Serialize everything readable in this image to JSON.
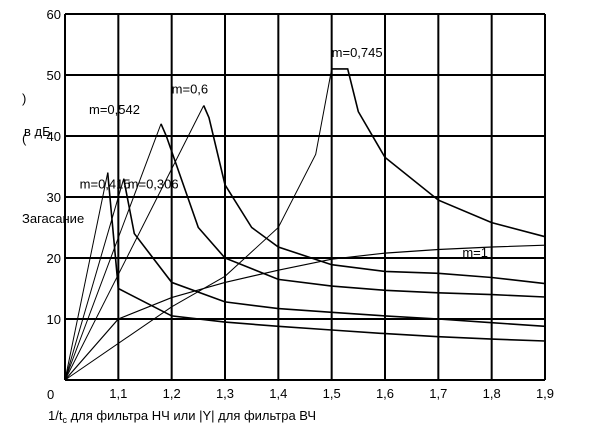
{
  "chart_data": {
    "type": "line",
    "x_ticks": [
      "1,1",
      "1,2",
      "1,3",
      "1,4",
      "1,5",
      "1,6",
      "1,7",
      "1,8",
      "1,9"
    ],
    "y_ticks": [
      "10",
      "20",
      "30",
      "40",
      "50",
      "60"
    ],
    "origin_label": "0",
    "xlim": [
      1.0,
      1.9
    ],
    "ylim": [
      0,
      60
    ],
    "grid": true,
    "xlabel_parts": [
      "1/t",
      "c",
      " для фильтра НЧ или   |Y| для фильтра ВЧ"
    ],
    "ylabel_fragments": [
      ")",
      "в дБ",
      "("
    ],
    "side_label": "Загасание",
    "grid_color": "#000000",
    "curve_color": "#000000",
    "series": [
      {
        "name": "m=0,306",
        "x": [
          1.0,
          1.08,
          1.1,
          1.2,
          1.3,
          1.4,
          1.5,
          1.6,
          1.7,
          1.8,
          1.9
        ],
        "y": [
          0,
          34,
          15,
          10.5,
          9.5,
          8.8,
          8.2,
          7.6,
          7.1,
          6.7,
          6.4
        ]
      },
      {
        "name": "m=0,415",
        "x": [
          1.0,
          1.11,
          1.13,
          1.2,
          1.3,
          1.4,
          1.5,
          1.6,
          1.7,
          1.8,
          1.9
        ],
        "y": [
          0,
          33,
          24,
          16,
          12.8,
          11.7,
          11.1,
          10.5,
          10.0,
          9.4,
          8.8
        ]
      },
      {
        "name": "m=0,542",
        "x": [
          1.0,
          1.18,
          1.19,
          1.25,
          1.3,
          1.4,
          1.5,
          1.6,
          1.7,
          1.8,
          1.9
        ],
        "y": [
          0,
          42,
          40,
          25,
          20,
          16.5,
          15.4,
          14.7,
          14.3,
          14.0,
          13.6
        ]
      },
      {
        "name": "m=0,6",
        "x": [
          1.0,
          1.26,
          1.27,
          1.3,
          1.35,
          1.4,
          1.5,
          1.6,
          1.7,
          1.8,
          1.9
        ],
        "y": [
          0,
          45,
          43,
          32,
          25,
          21.8,
          18.9,
          17.8,
          17.5,
          16.8,
          15.8
        ]
      },
      {
        "name": "m=0,745",
        "x": [
          1.0,
          1.2,
          1.3,
          1.4,
          1.47,
          1.5,
          1.53,
          1.55,
          1.6,
          1.7,
          1.8,
          1.9
        ],
        "y": [
          0,
          12,
          17,
          25,
          37,
          51,
          51,
          44,
          36.5,
          29.5,
          25.8,
          23.5
        ]
      },
      {
        "name": "m=1",
        "x": [
          1.0,
          1.1,
          1.2,
          1.3,
          1.4,
          1.5,
          1.6,
          1.7,
          1.8,
          1.9
        ],
        "y": [
          0,
          10,
          13.5,
          16,
          18,
          19.8,
          20.8,
          21.4,
          21.8,
          22.1
        ]
      }
    ]
  }
}
